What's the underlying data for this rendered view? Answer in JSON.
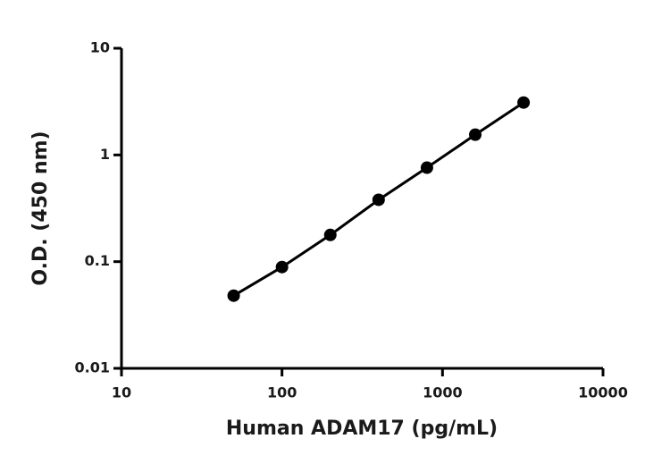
{
  "chart_data": {
    "type": "scatter",
    "x_label": "Human ADAM17 (pg/mL)",
    "y_label": "O.D. (450 nm)",
    "xscale": "log",
    "yscale": "log",
    "xlim": [
      10,
      10000
    ],
    "ylim": [
      0.01,
      10
    ],
    "xticks": [
      10,
      100,
      1000,
      10000
    ],
    "yticks": [
      0.01,
      0.1,
      1,
      10
    ],
    "connect_points": true,
    "series": [
      {
        "color": "#000000",
        "x": [
          50,
          100,
          200,
          400,
          800,
          1600,
          3200
        ],
        "values": [
          0.048,
          0.089,
          0.178,
          0.38,
          0.76,
          1.55,
          3.1
        ]
      }
    ]
  }
}
